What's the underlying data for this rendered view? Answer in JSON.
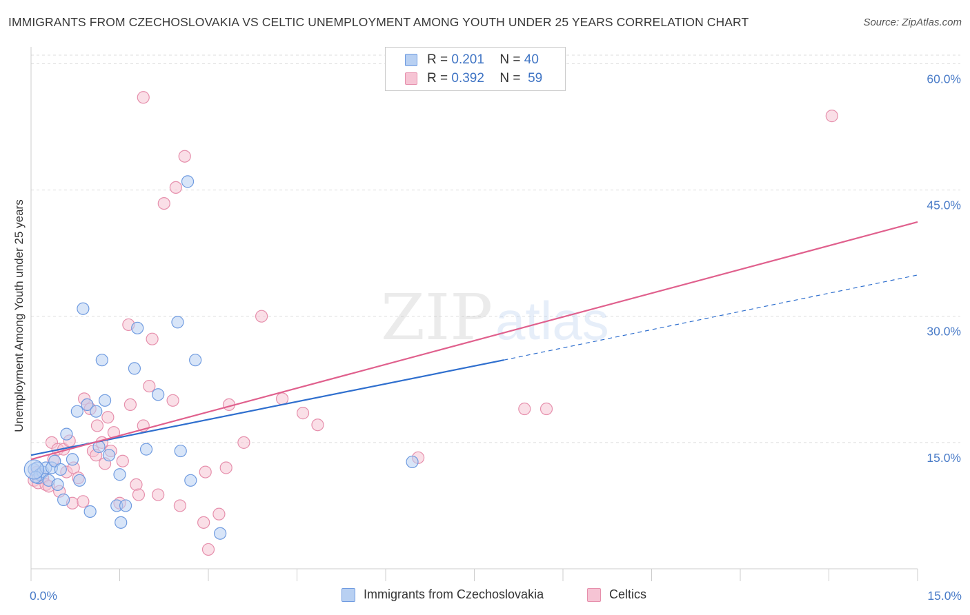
{
  "header": {
    "title": "IMMIGRANTS FROM CZECHOSLOVAKIA VS CELTIC UNEMPLOYMENT AMONG YOUTH UNDER 25 YEARS CORRELATION CHART",
    "source": "Source: ZipAtlas.com"
  },
  "legend": {
    "rows": [
      {
        "r_label": "R =",
        "r_value": "0.201",
        "n_label": "N =",
        "n_value": "40"
      },
      {
        "r_label": "R =",
        "r_value": "0.392",
        "n_label": "N =",
        "n_value": "59"
      }
    ]
  },
  "bottom_legend": {
    "items": [
      "Immigrants from Czechoslovakia",
      "Celtics"
    ]
  },
  "watermark": {
    "zip": "ZIP",
    "atlas": "atlas"
  },
  "colors": {
    "blue_fill": "#b8d0f2",
    "blue_stroke": "#6f9be0",
    "blue_line": "#2f6fce",
    "pink_fill": "#f6c4d4",
    "pink_stroke": "#e68fac",
    "pink_line": "#e0608d",
    "tick_text": "#4a7cc8",
    "grid": "#dddddd"
  },
  "chart_data": {
    "type": "scatter",
    "title": "IMMIGRANTS FROM CZECHOSLOVAKIA VS CELTIC UNEMPLOYMENT AMONG YOUTH UNDER 25 YEARS CORRELATION CHART",
    "xlabel": "",
    "ylabel": "Unemployment Among Youth under 25 years",
    "xlim": [
      0,
      15
    ],
    "ylim": [
      0,
      62
    ],
    "x_tick_labels": [
      {
        "value": 0,
        "label": "0.0%"
      },
      {
        "value": 15,
        "label": "15.0%"
      }
    ],
    "y_tick_labels": [
      {
        "value": 15,
        "label": "15.0%"
      },
      {
        "value": 30,
        "label": "30.0%"
      },
      {
        "value": 45,
        "label": "45.0%"
      },
      {
        "value": 60,
        "label": "60.0%"
      }
    ],
    "series": [
      {
        "name": "Immigrants from Czechoslovakia",
        "color": "#6f9be0",
        "r": 0.201,
        "n": 40,
        "trend": {
          "x0": 0.0,
          "y0": 13.5,
          "x1": 8.0,
          "y1": 24.8,
          "dash_to_x": 15.0,
          "dash_to_y": 34.9
        },
        "points": [
          [
            0.05,
            11.8
          ],
          [
            0.1,
            12.0
          ],
          [
            0.12,
            10.8
          ],
          [
            0.15,
            11.2
          ],
          [
            0.2,
            11.5
          ],
          [
            0.25,
            12.0
          ],
          [
            0.3,
            10.5
          ],
          [
            0.35,
            12.0
          ],
          [
            0.4,
            12.8
          ],
          [
            0.45,
            10.0
          ],
          [
            0.5,
            11.8
          ],
          [
            0.55,
            8.2
          ],
          [
            0.6,
            16.0
          ],
          [
            0.78,
            18.7
          ],
          [
            0.82,
            10.5
          ],
          [
            0.88,
            30.9
          ],
          [
            0.95,
            19.5
          ],
          [
            1.0,
            6.8
          ],
          [
            1.1,
            18.7
          ],
          [
            1.15,
            14.5
          ],
          [
            1.2,
            24.8
          ],
          [
            1.25,
            20.0
          ],
          [
            1.32,
            13.5
          ],
          [
            1.45,
            7.5
          ],
          [
            1.5,
            11.2
          ],
          [
            1.52,
            5.5
          ],
          [
            1.6,
            7.5
          ],
          [
            1.75,
            23.8
          ],
          [
            1.8,
            28.6
          ],
          [
            1.95,
            14.2
          ],
          [
            2.15,
            20.7
          ],
          [
            2.48,
            29.3
          ],
          [
            2.53,
            14.0
          ],
          [
            2.65,
            46.0
          ],
          [
            2.7,
            10.5
          ],
          [
            2.78,
            24.8
          ],
          [
            3.2,
            4.2
          ],
          [
            6.45,
            12.7
          ],
          [
            0.7,
            13.0
          ],
          [
            0.08,
            10.9
          ]
        ]
      },
      {
        "name": "Celtics",
        "color": "#e68fac",
        "r": 0.392,
        "n": 59,
        "trend": {
          "x0": 0.0,
          "y0": 13.0,
          "x1": 15.0,
          "y1": 41.2
        },
        "points": [
          [
            0.05,
            10.5
          ],
          [
            0.1,
            11.5
          ],
          [
            0.12,
            10.2
          ],
          [
            0.2,
            10.8
          ],
          [
            0.25,
            10.0
          ],
          [
            0.3,
            9.8
          ],
          [
            0.35,
            15.0
          ],
          [
            0.38,
            13.0
          ],
          [
            0.45,
            14.2
          ],
          [
            0.55,
            14.2
          ],
          [
            0.6,
            11.5
          ],
          [
            0.65,
            15.2
          ],
          [
            0.7,
            7.8
          ],
          [
            0.72,
            12.0
          ],
          [
            0.8,
            10.8
          ],
          [
            0.88,
            8.0
          ],
          [
            0.9,
            20.2
          ],
          [
            0.95,
            19.5
          ],
          [
            1.0,
            19.0
          ],
          [
            1.05,
            14.0
          ],
          [
            1.1,
            13.5
          ],
          [
            1.12,
            17.0
          ],
          [
            1.2,
            15.0
          ],
          [
            1.25,
            12.5
          ],
          [
            1.3,
            18.0
          ],
          [
            1.35,
            14.0
          ],
          [
            1.4,
            16.2
          ],
          [
            1.5,
            7.8
          ],
          [
            1.55,
            12.8
          ],
          [
            1.65,
            29.0
          ],
          [
            1.68,
            19.5
          ],
          [
            1.78,
            10.0
          ],
          [
            1.82,
            8.8
          ],
          [
            1.9,
            17.0
          ],
          [
            2.0,
            21.7
          ],
          [
            2.05,
            27.3
          ],
          [
            2.15,
            8.8
          ],
          [
            2.25,
            43.4
          ],
          [
            2.4,
            20.0
          ],
          [
            2.45,
            45.3
          ],
          [
            2.52,
            7.5
          ],
          [
            2.6,
            49.0
          ],
          [
            2.92,
            5.5
          ],
          [
            2.95,
            11.5
          ],
          [
            3.0,
            2.3
          ],
          [
            3.18,
            6.5
          ],
          [
            3.3,
            12.0
          ],
          [
            3.35,
            19.5
          ],
          [
            3.6,
            15.0
          ],
          [
            3.9,
            30.0
          ],
          [
            4.25,
            20.2
          ],
          [
            4.6,
            18.5
          ],
          [
            4.85,
            17.1
          ],
          [
            6.55,
            13.2
          ],
          [
            8.35,
            19.0
          ],
          [
            8.72,
            19.0
          ],
          [
            1.9,
            56.0
          ],
          [
            13.55,
            53.8
          ],
          [
            0.48,
            9.2
          ]
        ]
      }
    ]
  }
}
